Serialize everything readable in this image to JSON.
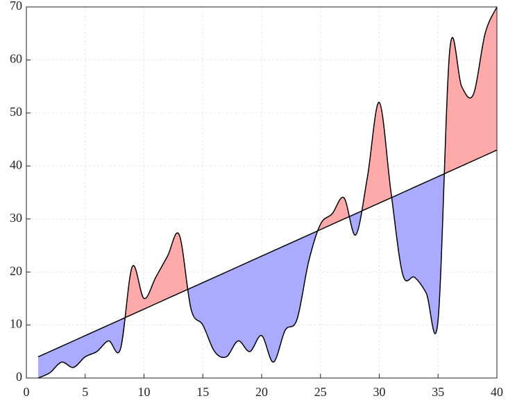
{
  "chart_data": {
    "type": "fill_between",
    "x": [
      1,
      2,
      3,
      4,
      5,
      6,
      7,
      8,
      9,
      10,
      11,
      12,
      13,
      14,
      15,
      16,
      17,
      18,
      19,
      20,
      21,
      22,
      23,
      24,
      25,
      26,
      27,
      28,
      29,
      30,
      31,
      32,
      33,
      34,
      35,
      36,
      37,
      38,
      39,
      40
    ],
    "values": [
      0,
      1,
      3,
      2,
      4,
      5,
      7,
      5.5,
      21,
      15,
      19,
      23,
      27,
      13,
      10,
      5,
      4,
      7,
      5,
      8,
      3,
      9,
      11,
      22,
      29,
      31,
      34,
      27,
      38,
      52,
      35,
      19.5,
      19,
      16,
      11,
      62,
      55,
      53.5,
      65,
      70
    ],
    "baseline": [
      4,
      5,
      6,
      7,
      8,
      9,
      10,
      11,
      12,
      13,
      14,
      15,
      16,
      17,
      18,
      19,
      20,
      21,
      22,
      23,
      24,
      25,
      26,
      27,
      28,
      29,
      30,
      31,
      32,
      33,
      34,
      35,
      36,
      37,
      38,
      39,
      40,
      41,
      42,
      43
    ],
    "above_color": "#ffaaaa",
    "below_color": "#aaaaff",
    "line_color": "#000000",
    "xlim": [
      0,
      40
    ],
    "ylim": [
      0,
      70
    ],
    "xticks": [
      0,
      5,
      10,
      15,
      20,
      25,
      30,
      35,
      40
    ],
    "yticks": [
      0,
      10,
      20,
      30,
      40,
      50,
      60,
      70
    ],
    "grid": true
  }
}
